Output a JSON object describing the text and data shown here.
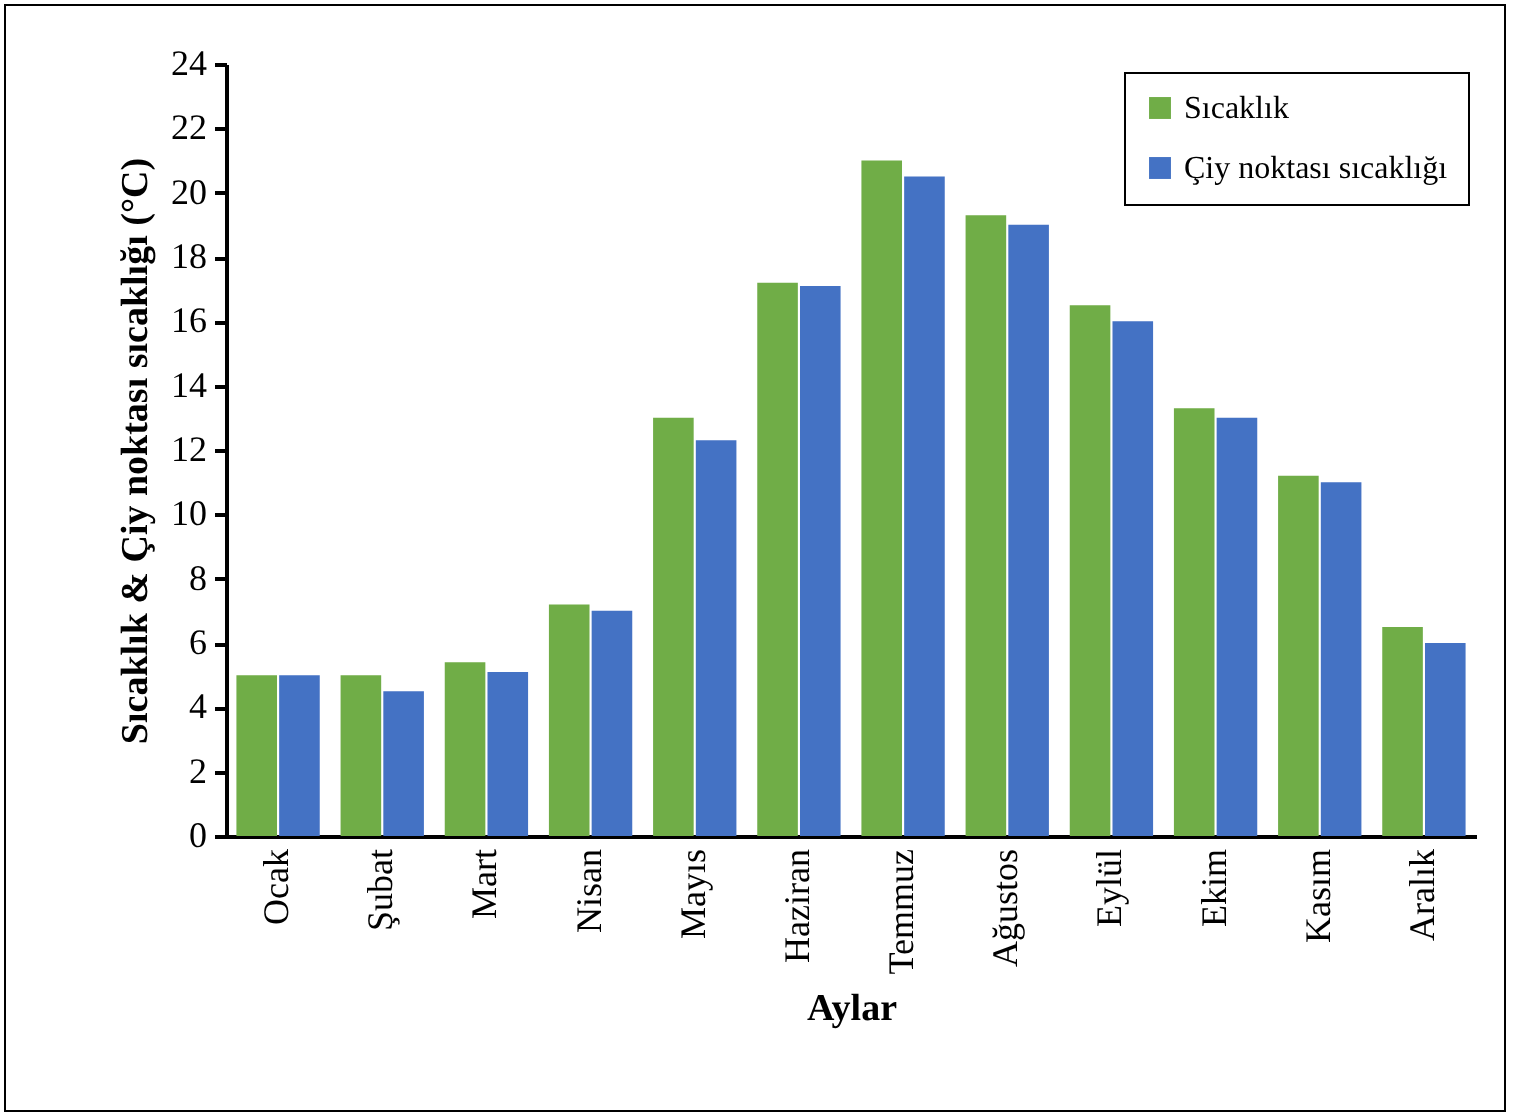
{
  "chart_data": {
    "type": "bar",
    "xlabel": "Aylar",
    "ylabel": "Sıcaklık & Çiy noktası sıcaklığı (°C)",
    "categories": [
      "Ocak",
      "Şubat",
      "Mart",
      "Nisan",
      "Mayıs",
      "Haziran",
      "Temmuz",
      "Ağustos",
      "Eylül",
      "Ekim",
      "Kasım",
      "Aralık"
    ],
    "series": [
      {
        "name": "Sıcaklık",
        "color": "#70ad47",
        "values": [
          5.0,
          5.0,
          5.4,
          7.2,
          13.0,
          17.2,
          21.0,
          19.3,
          16.5,
          13.3,
          11.2,
          6.5
        ]
      },
      {
        "name": "Çiy noktası sıcaklığı",
        "color": "#4472c4",
        "values": [
          5.0,
          4.5,
          5.1,
          7.0,
          12.3,
          17.1,
          20.5,
          19.0,
          16.0,
          13.0,
          11.0,
          6.0
        ]
      }
    ],
    "ylim": [
      0,
      24
    ],
    "yticks": [
      0,
      2,
      4,
      6,
      8,
      10,
      12,
      14,
      16,
      18,
      20,
      22,
      24
    ],
    "grid": false,
    "legend": "top right"
  }
}
